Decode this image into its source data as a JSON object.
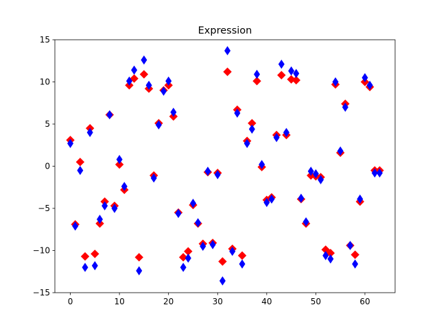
{
  "chart_data": {
    "type": "scatter",
    "title": "Expression",
    "xlabel": "",
    "ylabel": "",
    "xlim": [
      -3.15,
      66.15
    ],
    "ylim": [
      -15,
      15
    ],
    "xticks": [
      0,
      10,
      20,
      30,
      40,
      50,
      60
    ],
    "yticks": [
      -15,
      -10,
      -5,
      0,
      5,
      10,
      15
    ],
    "tick_labels_x": [
      "0",
      "10",
      "20",
      "30",
      "40",
      "50",
      "60"
    ],
    "tick_labels_y": [
      "−15",
      "−10",
      "−5",
      "0",
      "5",
      "10",
      "15"
    ],
    "grid": false,
    "legend": null,
    "x": [
      0,
      1,
      2,
      3,
      4,
      5,
      6,
      7,
      8,
      9,
      10,
      11,
      12,
      13,
      14,
      15,
      16,
      17,
      18,
      19,
      20,
      21,
      22,
      23,
      24,
      25,
      26,
      27,
      28,
      29,
      30,
      31,
      32,
      33,
      34,
      35,
      36,
      37,
      38,
      39,
      40,
      41,
      42,
      43,
      44,
      45,
      46,
      47,
      48,
      49,
      50,
      51,
      52,
      53,
      54,
      55,
      56,
      57,
      58,
      59,
      60,
      61,
      62,
      63
    ],
    "series": [
      {
        "color": "#ff0000",
        "marker": "diamond",
        "values": [
          3.1,
          -6.9,
          0.5,
          -10.7,
          4.5,
          -10.4,
          -6.8,
          -4.2,
          6.1,
          -4.7,
          0.2,
          -2.8,
          9.6,
          10.4,
          -10.8,
          10.9,
          9.2,
          -1.1,
          5.1,
          9.0,
          9.6,
          5.9,
          -5.5,
          -10.8,
          -10.1,
          -4.6,
          -6.8,
          -9.2,
          -0.7,
          -9.1,
          -0.8,
          -11.3,
          11.2,
          -9.8,
          6.7,
          -10.6,
          3.0,
          5.1,
          10.1,
          -0.1,
          -4.0,
          -3.7,
          3.7,
          10.8,
          3.7,
          10.3,
          10.2,
          -3.9,
          -6.8,
          -1.1,
          -1.2,
          -1.3,
          -9.9,
          -10.3,
          9.7,
          1.6,
          7.4,
          -9.4,
          -10.5,
          -4.2,
          10.0,
          9.4,
          -0.5,
          -0.5
        ]
      },
      {
        "color": "#0000ff",
        "marker": "thin_diamond",
        "values": [
          2.7,
          -7.1,
          -0.5,
          -12.0,
          4.0,
          -11.8,
          -6.3,
          -4.7,
          6.1,
          -5.0,
          0.8,
          -2.4,
          10.1,
          11.4,
          -12.4,
          12.6,
          9.6,
          -1.4,
          4.9,
          8.9,
          10.1,
          6.4,
          -5.6,
          -12.0,
          -10.9,
          -4.4,
          -6.7,
          -9.5,
          -0.6,
          -9.3,
          -1.0,
          -13.6,
          13.7,
          -10.1,
          6.3,
          -11.6,
          2.7,
          4.4,
          10.9,
          0.2,
          -4.3,
          -3.9,
          3.4,
          12.1,
          4.0,
          11.3,
          11.0,
          -3.8,
          -6.6,
          -0.6,
          -0.9,
          -1.6,
          -10.6,
          -11.0,
          10.0,
          1.8,
          7.0,
          -9.4,
          -11.6,
          -3.9,
          10.5,
          9.6,
          -0.8,
          -0.8
        ]
      }
    ]
  }
}
